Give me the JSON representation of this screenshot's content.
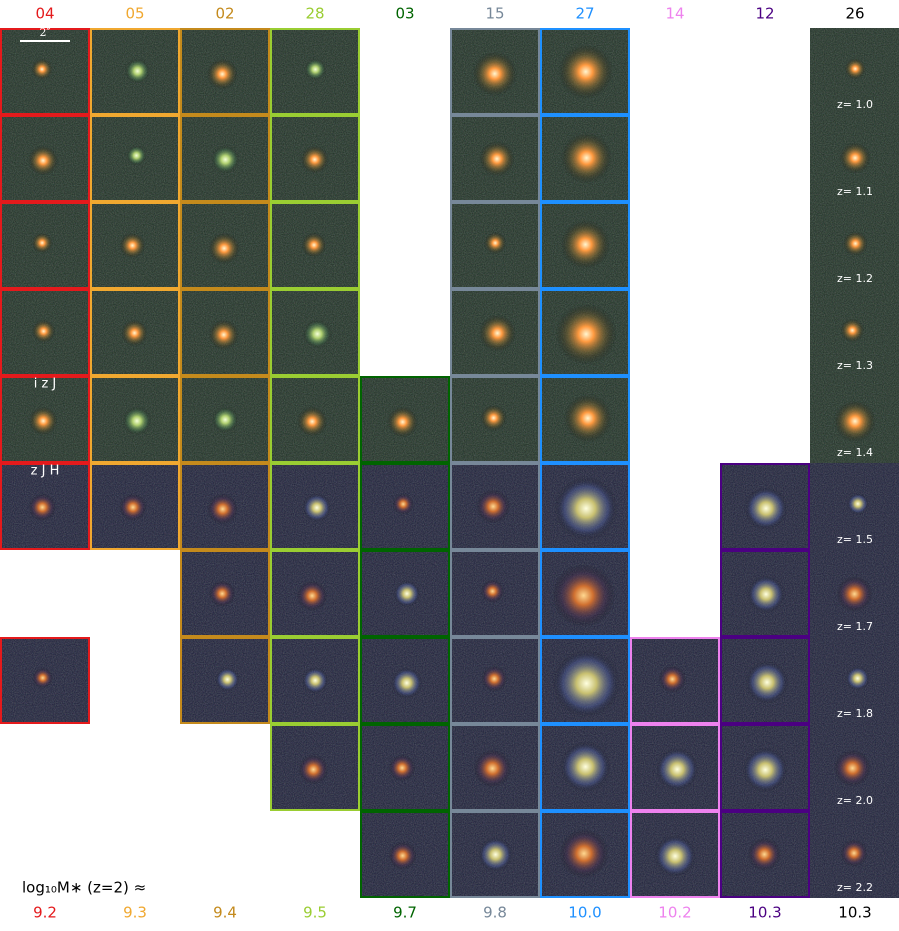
{
  "columns": [
    {
      "label": "04",
      "mass": "9.2",
      "color": "#e41a1c",
      "border": true,
      "panels": [
        true,
        true,
        true,
        true,
        true,
        true,
        false,
        true,
        false,
        false
      ]
    },
    {
      "label": "05",
      "mass": "9.3",
      "color": "#f0a830",
      "border": true,
      "panels": [
        true,
        true,
        true,
        true,
        true,
        true,
        false,
        false,
        false,
        false
      ]
    },
    {
      "label": "02",
      "mass": "9.4",
      "color": "#c48a1c",
      "border": true,
      "panels": [
        true,
        true,
        true,
        true,
        true,
        true,
        true,
        true,
        false,
        false
      ]
    },
    {
      "label": "28",
      "mass": "9.5",
      "color": "#9acd32",
      "border": true,
      "panels": [
        true,
        true,
        true,
        true,
        true,
        true,
        true,
        true,
        true,
        false
      ]
    },
    {
      "label": "03",
      "mass": "9.7",
      "color": "#006400",
      "border": true,
      "panels": [
        false,
        false,
        false,
        false,
        true,
        true,
        true,
        true,
        true,
        true
      ]
    },
    {
      "label": "15",
      "mass": "9.8",
      "color": "#778899",
      "border": true,
      "panels": [
        true,
        true,
        true,
        true,
        true,
        true,
        true,
        true,
        true,
        true
      ]
    },
    {
      "label": "27",
      "mass": "10.0",
      "color": "#1e90ff",
      "border": true,
      "panels": [
        true,
        true,
        true,
        true,
        true,
        true,
        true,
        true,
        true,
        true
      ]
    },
    {
      "label": "14",
      "mass": "10.2",
      "color": "#ee82ee",
      "border": true,
      "panels": [
        false,
        false,
        false,
        false,
        false,
        false,
        false,
        true,
        true,
        true
      ]
    },
    {
      "label": "12",
      "mass": "10.3",
      "color": "#4b0082",
      "border": true,
      "panels": [
        false,
        false,
        false,
        false,
        false,
        true,
        true,
        true,
        true,
        true
      ]
    },
    {
      "label": "26",
      "mass": "10.3",
      "color": "#000000",
      "border": false,
      "panels": [
        true,
        true,
        true,
        true,
        true,
        true,
        true,
        true,
        true,
        true
      ]
    }
  ],
  "redshifts": [
    "z= 1.0",
    "z= 1.1",
    "z= 1.2",
    "z= 1.3",
    "z= 1.4",
    "z= 1.5",
    "z= 1.7",
    "z= 1.8",
    "z= 2.0",
    "z= 2.2"
  ],
  "scale_bar": "2″",
  "bands_top": "i  z  J",
  "bands_bottom": "z  J  H",
  "mass_label": "log₁₀M∗ (z=2) ≈"
}
